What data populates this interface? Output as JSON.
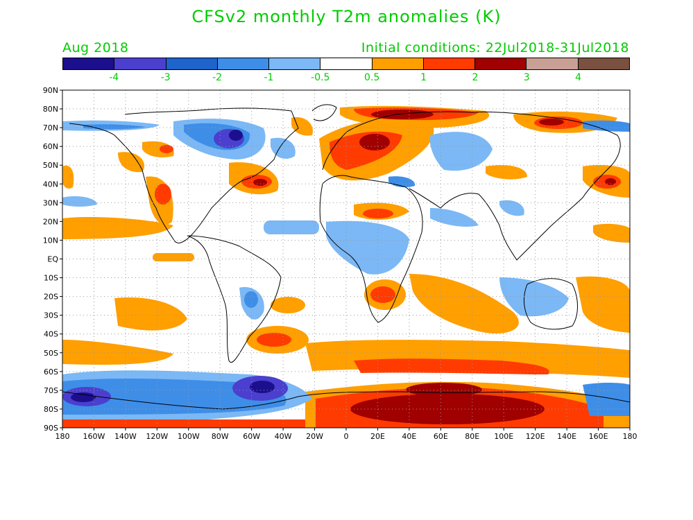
{
  "title": "CFSv2 monthly T2m anomalies (K)",
  "subtitle_left": "Aug 2018",
  "subtitle_right": "Initial conditions: 22Jul2018-31Jul2018",
  "colorbar": {
    "colors": [
      "#1c0f8e",
      "#4b3fcf",
      "#1f63cc",
      "#3e8ee8",
      "#7bb8f5",
      "#ffffff",
      "#ff9f00",
      "#ff3b00",
      "#a00000",
      "#c8a096",
      "#7a5040"
    ],
    "labels": [
      "-4",
      "-3",
      "-2",
      "-1",
      "-0.5",
      "0.5",
      "1",
      "2",
      "3",
      "4"
    ]
  },
  "lat_labels": [
    "90N",
    "80N",
    "70N",
    "60N",
    "50N",
    "40N",
    "30N",
    "20N",
    "10N",
    "EQ",
    "10S",
    "20S",
    "30S",
    "40S",
    "50S",
    "60S",
    "70S",
    "80S",
    "90S"
  ],
  "lon_labels": [
    "180",
    "160W",
    "140W",
    "120W",
    "100W",
    "80W",
    "60W",
    "40W",
    "20W",
    "0",
    "20E",
    "40E",
    "60E",
    "80E",
    "100E",
    "120E",
    "140E",
    "160E",
    "180"
  ]
}
